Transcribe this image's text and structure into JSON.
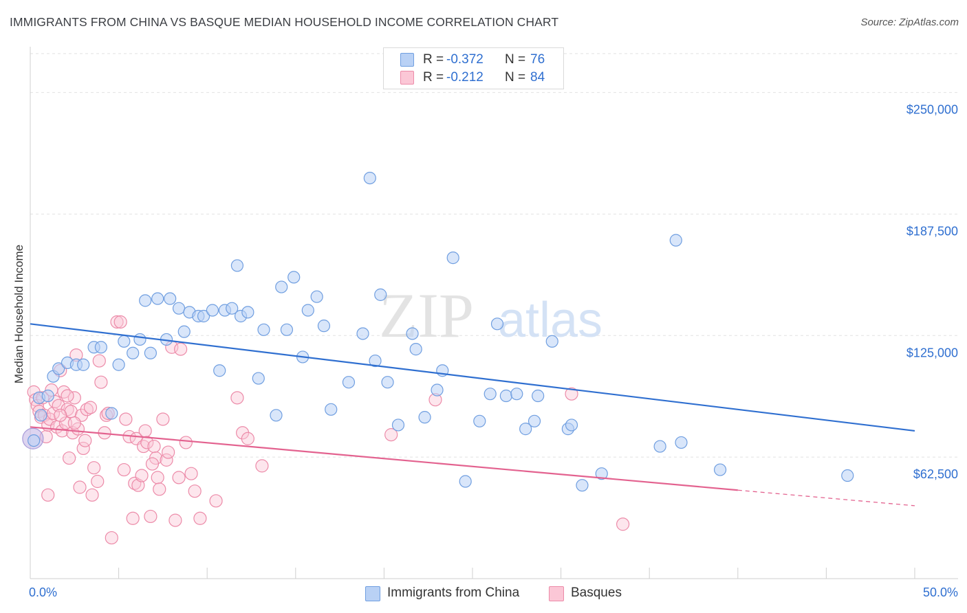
{
  "header": {
    "title": "IMMIGRANTS FROM CHINA VS BASQUE MEDIAN HOUSEHOLD INCOME CORRELATION CHART",
    "source": "Source: ZipAtlas.com"
  },
  "legend": {
    "series1": {
      "r_label": "R =",
      "r_value": "-0.372",
      "n_label": "N =",
      "n_value": "76"
    },
    "series2": {
      "r_label": "R =",
      "r_value": "-0.212",
      "n_label": "N =",
      "n_value": "84"
    }
  },
  "watermark": {
    "zip": "ZIP",
    "atlas": "atlas"
  },
  "colors": {
    "blue_fill": "#b9d1f5",
    "blue_stroke": "#6f9ee0",
    "blue_line": "#2f6fd0",
    "pink_fill": "#fbc7d6",
    "pink_stroke": "#ec8aa8",
    "pink_line": "#e3628f",
    "tick_label": "#2f6fd0",
    "grid": "#e2e2e2"
  },
  "chart_data": {
    "type": "scatter",
    "title": "IMMIGRANTS FROM CHINA VS BASQUE MEDIAN HOUSEHOLD INCOME CORRELATION CHART",
    "xlabel": "",
    "ylabel": "Median Household Income",
    "xlim": [
      0,
      50
    ],
    "ylim": [
      0,
      270000
    ],
    "x_tick_labels": [
      "0.0%",
      "50.0%"
    ],
    "y_ticks": [
      62500,
      125000,
      187500,
      250000
    ],
    "y_tick_labels": [
      "$62,500",
      "$125,000",
      "$187,500",
      "$250,000"
    ],
    "grid": true,
    "legend_position": "top-center",
    "series": [
      {
        "name": "Immigrants from China",
        "color": "#6f9ee0",
        "trend": {
          "x": [
            0,
            50
          ],
          "y": [
            131000,
            76000
          ]
        },
        "points": [
          [
            0.2,
            71000
          ],
          [
            0.5,
            93000
          ],
          [
            0.6,
            84000
          ],
          [
            1.0,
            94000
          ],
          [
            1.3,
            104000
          ],
          [
            1.6,
            108000
          ],
          [
            2.1,
            111000
          ],
          [
            2.6,
            110000
          ],
          [
            3.0,
            110000
          ],
          [
            3.6,
            119000
          ],
          [
            4.0,
            119000
          ],
          [
            4.6,
            85000
          ],
          [
            5.0,
            110000
          ],
          [
            5.3,
            122000
          ],
          [
            5.8,
            116000
          ],
          [
            6.2,
            123000
          ],
          [
            6.5,
            143000
          ],
          [
            6.8,
            116000
          ],
          [
            7.2,
            144000
          ],
          [
            7.7,
            123000
          ],
          [
            7.9,
            144000
          ],
          [
            8.4,
            139000
          ],
          [
            8.7,
            127000
          ],
          [
            9.0,
            137000
          ],
          [
            9.5,
            135000
          ],
          [
            9.8,
            135000
          ],
          [
            10.3,
            138000
          ],
          [
            10.7,
            107000
          ],
          [
            11.0,
            138000
          ],
          [
            11.4,
            139000
          ],
          [
            11.9,
            135000
          ],
          [
            11.7,
            161000
          ],
          [
            12.3,
            137000
          ],
          [
            12.9,
            103000
          ],
          [
            13.2,
            128000
          ],
          [
            13.9,
            84000
          ],
          [
            14.2,
            150000
          ],
          [
            14.5,
            128000
          ],
          [
            14.9,
            155000
          ],
          [
            15.4,
            114000
          ],
          [
            15.7,
            138000
          ],
          [
            16.2,
            145000
          ],
          [
            16.6,
            130000
          ],
          [
            17.0,
            87000
          ],
          [
            18.0,
            101000
          ],
          [
            18.8,
            126000
          ],
          [
            19.2,
            206000
          ],
          [
            19.5,
            112000
          ],
          [
            19.8,
            146000
          ],
          [
            20.2,
            101000
          ],
          [
            20.8,
            79000
          ],
          [
            21.6,
            126000
          ],
          [
            21.8,
            118000
          ],
          [
            22.3,
            83000
          ],
          [
            23.0,
            97000
          ],
          [
            23.3,
            107000
          ],
          [
            23.9,
            165000
          ],
          [
            24.6,
            50000
          ],
          [
            25.4,
            81000
          ],
          [
            26.0,
            95000
          ],
          [
            26.4,
            131000
          ],
          [
            26.9,
            94000
          ],
          [
            27.5,
            95000
          ],
          [
            28.0,
            77000
          ],
          [
            28.5,
            81000
          ],
          [
            28.7,
            94000
          ],
          [
            29.5,
            122000
          ],
          [
            30.4,
            77000
          ],
          [
            30.6,
            79000
          ],
          [
            31.2,
            48000
          ],
          [
            32.3,
            54000
          ],
          [
            35.6,
            68000
          ],
          [
            36.5,
            174000
          ],
          [
            36.8,
            70000
          ],
          [
            39.0,
            56000
          ],
          [
            46.2,
            53000
          ]
        ]
      },
      {
        "name": "Basques",
        "color": "#ec8aa8",
        "trend": {
          "x": [
            0,
            40
          ],
          "y": [
            78000,
            45500
          ]
        },
        "trend_dashed": {
          "x": [
            40,
            50
          ],
          "y": [
            45500,
            37500
          ]
        },
        "points": [
          [
            0.2,
            96000
          ],
          [
            0.3,
            92000
          ],
          [
            0.4,
            89000
          ],
          [
            0.5,
            86000
          ],
          [
            0.6,
            83000
          ],
          [
            0.7,
            93000
          ],
          [
            0.8,
            84000
          ],
          [
            0.9,
            73000
          ],
          [
            1.0,
            79000
          ],
          [
            1.1,
            82000
          ],
          [
            1.2,
            97000
          ],
          [
            1.3,
            85000
          ],
          [
            1.4,
            91000
          ],
          [
            1.5,
            78000
          ],
          [
            1.6,
            89000
          ],
          [
            1.7,
            107000
          ],
          [
            1.8,
            76000
          ],
          [
            1.9,
            96000
          ],
          [
            2.0,
            80000
          ],
          [
            2.1,
            87000
          ],
          [
            2.2,
            62000
          ],
          [
            2.3,
            86000
          ],
          [
            2.4,
            75000
          ],
          [
            2.5,
            93000
          ],
          [
            2.6,
            115000
          ],
          [
            2.7,
            77000
          ],
          [
            2.8,
            47000
          ],
          [
            2.9,
            84000
          ],
          [
            3.0,
            67000
          ],
          [
            3.1,
            71000
          ],
          [
            3.2,
            87000
          ],
          [
            3.4,
            88000
          ],
          [
            3.5,
            43000
          ],
          [
            3.6,
            57000
          ],
          [
            3.8,
            50000
          ],
          [
            4.0,
            101000
          ],
          [
            4.2,
            75000
          ],
          [
            4.3,
            84000
          ],
          [
            4.6,
            21000
          ],
          [
            4.9,
            132000
          ],
          [
            5.1,
            132000
          ],
          [
            5.3,
            56000
          ],
          [
            5.4,
            82000
          ],
          [
            5.6,
            73000
          ],
          [
            5.8,
            31000
          ],
          [
            5.9,
            49000
          ],
          [
            6.0,
            72000
          ],
          [
            6.1,
            48000
          ],
          [
            6.3,
            53000
          ],
          [
            6.4,
            68000
          ],
          [
            6.5,
            76000
          ],
          [
            6.6,
            70000
          ],
          [
            6.8,
            32000
          ],
          [
            7.0,
            68000
          ],
          [
            7.1,
            62000
          ],
          [
            7.2,
            52000
          ],
          [
            7.3,
            46000
          ],
          [
            7.5,
            82000
          ],
          [
            7.7,
            61000
          ],
          [
            7.8,
            65000
          ],
          [
            8.0,
            119000
          ],
          [
            8.2,
            30000
          ],
          [
            8.4,
            52000
          ],
          [
            8.5,
            118000
          ],
          [
            8.8,
            70000
          ],
          [
            9.1,
            54000
          ],
          [
            9.3,
            45000
          ],
          [
            9.6,
            31000
          ],
          [
            11.7,
            93000
          ],
          [
            12.0,
            75000
          ],
          [
            12.3,
            72000
          ],
          [
            13.1,
            58000
          ],
          [
            20.4,
            74000
          ],
          [
            22.9,
            92000
          ],
          [
            30.6,
            95000
          ],
          [
            33.5,
            28000
          ],
          [
            1.0,
            43000
          ],
          [
            1.7,
            84000
          ],
          [
            2.1,
            94000
          ],
          [
            2.5,
            80000
          ],
          [
            3.9,
            112000
          ],
          [
            4.4,
            85000
          ],
          [
            6.9,
            59000
          ],
          [
            10.5,
            40000
          ]
        ]
      }
    ]
  },
  "bottom_legend": {
    "series1_label": "Immigrants from China",
    "series2_label": "Basques"
  }
}
